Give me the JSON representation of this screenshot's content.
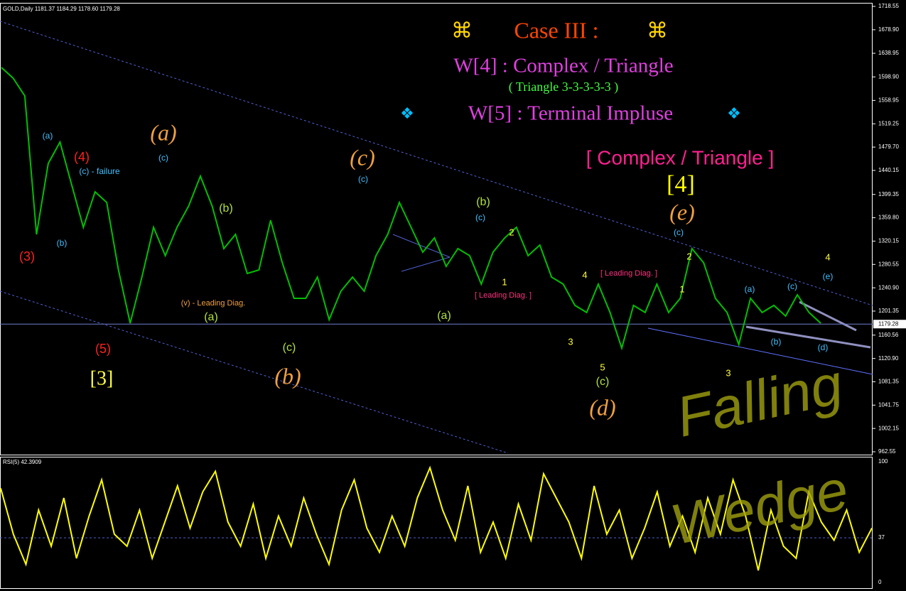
{
  "chart_data": {
    "type": "line",
    "symbol_info": "GOLD,Daily  1181.37 1184.29 1178.60 1179.28",
    "last_price": {
      "value": 1179.28,
      "label": "1179.28"
    },
    "color": "#00c000",
    "values": [
      1614.9,
      1596.8,
      1566.6,
      1331.5,
      1452,
      1488.3,
      1416,
      1343.6,
      1403.9,
      1385.8,
      1271.2,
      1180.8,
      1259.1,
      1343.6,
      1295.4,
      1343.6,
      1379.7,
      1430.4,
      1379.7,
      1307.4,
      1331.5,
      1265.2,
      1271.2,
      1355.6,
      1283.3,
      1223,
      1223,
      1259.1,
      1186.8,
      1235,
      1259.1,
      1235,
      1295.4,
      1331.5,
      1385.8,
      1343.6,
      1301.4,
      1325.6,
      1277.3,
      1307.4,
      1295.4,
      1247.1,
      1301.4,
      1325.6,
      1343.6,
      1295.4,
      1313.4,
      1259.1,
      1247.1,
      1211,
      1199,
      1247.1,
      1199,
      1138.6,
      1211,
      1199,
      1247.1,
      1199,
      1223,
      1307.4,
      1283.3,
      1223,
      1199,
      1144.6,
      1223,
      1199,
      1211,
      1193,
      1229,
      1199,
      1180.8
    ],
    "ylim": [
      962.55,
      1718.55
    ],
    "yticks": [
      1718.55,
      {
        "value": 1678.9,
        "label": "1678.90"
      },
      1638.95,
      {
        "value": 1598.9,
        "label": "1598.90"
      },
      1558.95,
      1519.25,
      {
        "value": 1479.7,
        "label": "1479.70"
      },
      1440.15,
      1399.35,
      {
        "value": 1359.8,
        "label": "1359.80"
      },
      1320.15,
      1280.55,
      {
        "value": 1240.9,
        "label": "1240.90"
      },
      1201.35,
      1160.56,
      {
        "value": 1120.9,
        "label": "1120.90"
      },
      1081.35,
      1041.75,
      1002.15,
      962.55
    ],
    "title_lines": [
      "⌘",
      "Case III :",
      "⌘",
      "W[4] : Complex / Triangle",
      "( Triangle 3-3-3-3-3 )",
      "❖",
      "W[5] : Terminal Impluse",
      "❖",
      "[ Complex / Triangle ]",
      "[4]"
    ],
    "annotations": [
      "(3)",
      "(4)",
      "(5)",
      "[3]",
      "(a)",
      "(b)",
      "(c)",
      "(d)",
      "(e)",
      "(a)",
      "(b)",
      "(c)",
      "(b)",
      "(a)",
      "(c)",
      "(c) - failure",
      "(v) - Leading Diag.",
      "[ Leading Diag. ]",
      "[ Leading Diag. ]",
      "5",
      "3",
      "3",
      "4",
      "(e)",
      "(d)",
      "(b)",
      "(a)",
      "(c)",
      "(a)",
      "(b)",
      "(c)",
      "(c)",
      "(c)",
      "(c)",
      "2",
      "1",
      "2",
      "4",
      "1"
    ],
    "handwriting": [
      "Falling",
      "Wedge"
    ],
    "rsi": {
      "label": "RSI(5) 42.3909",
      "color": "#ffff00",
      "ylim": [
        0,
        100
      ],
      "yticks": [
        100,
        37,
        0
      ],
      "values": [
        78,
        40,
        15,
        60,
        30,
        70,
        20,
        55,
        85,
        40,
        30,
        60,
        20,
        50,
        80,
        45,
        75,
        92,
        50,
        30,
        65,
        20,
        55,
        30,
        70,
        40,
        15,
        60,
        85,
        45,
        25,
        55,
        30,
        70,
        95,
        60,
        35,
        80,
        25,
        50,
        20,
        65,
        35,
        90,
        70,
        50,
        20,
        80,
        40,
        60,
        20,
        45,
        75,
        30,
        55,
        25,
        70,
        40,
        85,
        55,
        10,
        60,
        30,
        20,
        75,
        50,
        35,
        60,
        25,
        45
      ]
    }
  }
}
